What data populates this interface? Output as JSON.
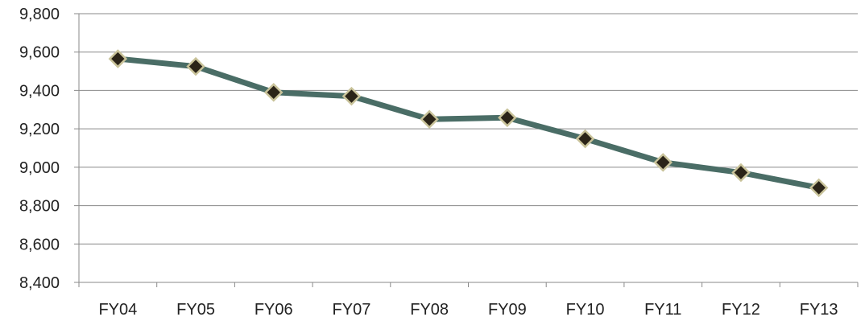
{
  "chart_data": {
    "type": "line",
    "title": "",
    "xlabel": "",
    "ylabel": "",
    "categories": [
      "FY04",
      "FY05",
      "FY06",
      "FY07",
      "FY08",
      "FY09",
      "FY10",
      "FY11",
      "FY12",
      "FY13"
    ],
    "series": [
      {
        "values": [
          9565,
          9525,
          9390,
          9370,
          9250,
          9258,
          9148,
          9025,
          8972,
          8893
        ]
      }
    ],
    "ylim": [
      8400,
      9800
    ],
    "yticks": [
      8400,
      8600,
      8800,
      9000,
      9200,
      9400,
      9600,
      9800
    ],
    "ytick_labels": [
      "8,400",
      "8,600",
      "8,800",
      "9,000",
      "9,200",
      "9,400",
      "9,600",
      "9,800"
    ],
    "grid": true,
    "legend": "none",
    "colors": {
      "line": "#4a6d66",
      "marker_fill": "#2b2418",
      "marker_stroke": "#c9c39a",
      "grid": "#8a8a8a"
    }
  }
}
